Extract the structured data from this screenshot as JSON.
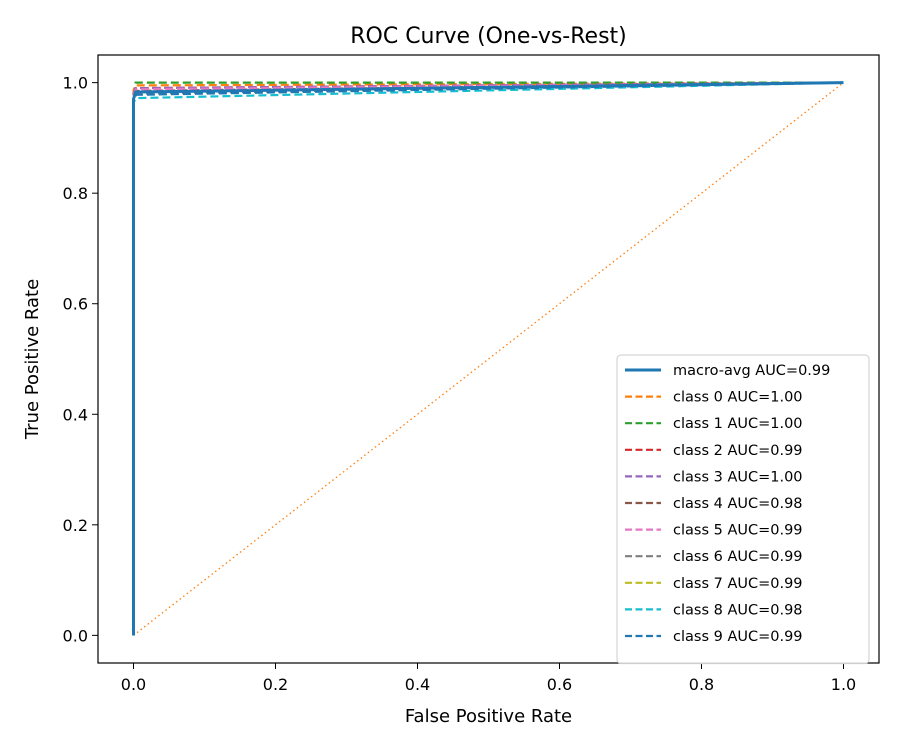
{
  "chart_data": {
    "type": "line",
    "title": "ROC Curve (One-vs-Rest)",
    "xlabel": "False Positive Rate",
    "ylabel": "True Positive Rate",
    "xlim": [
      -0.05,
      1.05
    ],
    "ylim": [
      -0.05,
      1.05
    ],
    "xticks": [
      0.0,
      0.2,
      0.4,
      0.6,
      0.8,
      1.0
    ],
    "yticks": [
      0.0,
      0.2,
      0.4,
      0.6,
      0.8,
      1.0
    ],
    "tick_labels": [
      "0.0",
      "0.2",
      "0.4",
      "0.6",
      "0.8",
      "1.0"
    ],
    "grid": false,
    "legend_position": "lower-right",
    "series": [
      {
        "name": "macro-avg AUC=0.99",
        "color": "#1f77b4",
        "style": "solid",
        "x": [
          0.0,
          0.0,
          0.003,
          1.0
        ],
        "y": [
          0.0,
          0.97,
          0.983,
          1.0
        ]
      },
      {
        "name": "class 0 AUC=1.00",
        "color": "#ff7f0e",
        "style": "dashed",
        "x": [
          0.0,
          0.0,
          0.002,
          1.0
        ],
        "y": [
          0.0,
          0.985,
          0.995,
          1.0
        ]
      },
      {
        "name": "class 1 AUC=1.00",
        "color": "#2ca02c",
        "style": "dashed",
        "x": [
          0.0,
          0.0,
          0.003,
          1.0
        ],
        "y": [
          0.0,
          0.96,
          1.0,
          1.0
        ]
      },
      {
        "name": "class 2 AUC=0.99",
        "color": "#d62728",
        "style": "dashed",
        "x": [
          0.0,
          0.0,
          0.004,
          1.0
        ],
        "y": [
          0.0,
          0.975,
          0.99,
          1.0
        ]
      },
      {
        "name": "class 3 AUC=1.00",
        "color": "#9467bd",
        "style": "dashed",
        "x": [
          0.0,
          0.0,
          0.003,
          1.0
        ],
        "y": [
          0.0,
          0.98,
          0.99,
          1.0
        ]
      },
      {
        "name": "class 4 AUC=0.98",
        "color": "#8c564b",
        "style": "dashed",
        "x": [
          0.0,
          0.0,
          0.004,
          1.0
        ],
        "y": [
          0.0,
          0.97,
          0.985,
          1.0
        ]
      },
      {
        "name": "class 5 AUC=0.99",
        "color": "#e377c2",
        "style": "dashed",
        "x": [
          0.0,
          0.0,
          0.003,
          1.0
        ],
        "y": [
          0.0,
          0.975,
          0.988,
          1.0
        ]
      },
      {
        "name": "class 6 AUC=0.99",
        "color": "#7f7f7f",
        "style": "dashed",
        "x": [
          0.0,
          0.0,
          0.004,
          1.0
        ],
        "y": [
          0.0,
          0.97,
          0.98,
          1.0
        ]
      },
      {
        "name": "class 7 AUC=0.99",
        "color": "#bcbd22",
        "style": "dashed",
        "x": [
          0.0,
          0.0,
          0.003,
          1.0
        ],
        "y": [
          0.0,
          0.975,
          0.983,
          1.0
        ]
      },
      {
        "name": "class 8 AUC=0.98",
        "color": "#17becf",
        "style": "dashed",
        "x": [
          0.0,
          0.0,
          0.005,
          1.0
        ],
        "y": [
          0.0,
          0.965,
          0.972,
          1.0
        ]
      },
      {
        "name": "class 9 AUC=0.99",
        "color": "#1f77b4",
        "style": "dashed",
        "x": [
          0.0,
          0.0,
          0.004,
          1.0
        ],
        "y": [
          0.0,
          0.97,
          0.978,
          1.0
        ]
      }
    ],
    "reference_line": {
      "color": "#ff7f0e",
      "style": "dotted",
      "x": [
        0.0,
        1.0
      ],
      "y": [
        0.0,
        1.0
      ]
    }
  }
}
